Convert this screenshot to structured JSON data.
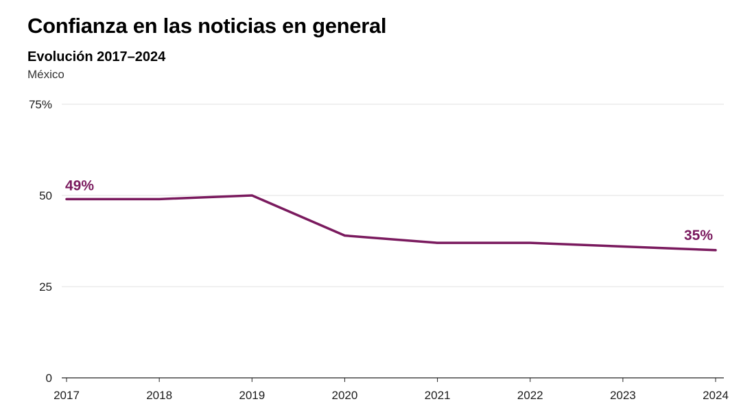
{
  "chart_data": {
    "type": "line",
    "title": "Confianza en las noticias en general",
    "subtitle": "Evolución 2017–2024",
    "region": "México",
    "x": [
      "2017",
      "2018",
      "2019",
      "2020",
      "2021",
      "2022",
      "2023",
      "2024"
    ],
    "series": [
      {
        "values": [
          49,
          49,
          50,
          39,
          37,
          37,
          36,
          35
        ]
      }
    ],
    "y_ticks": [
      "0",
      "25",
      "50",
      "75%"
    ],
    "ylim": [
      0,
      75
    ],
    "grid": true,
    "annotations": [
      "49%",
      "35%"
    ],
    "color": "#7a1a5e"
  }
}
